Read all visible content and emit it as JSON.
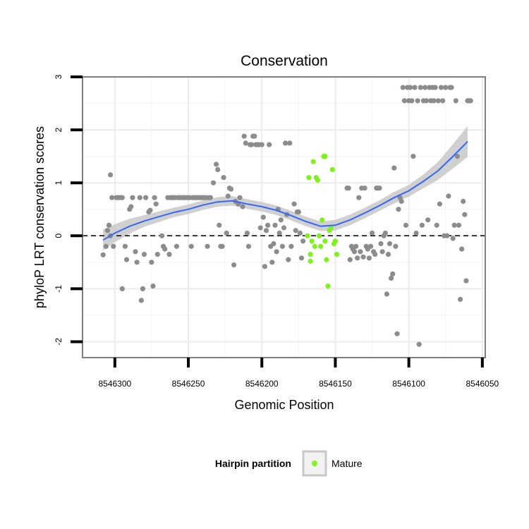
{
  "chart_data": {
    "type": "scatter",
    "title": "Conservation",
    "xlabel": "Genomic Position",
    "ylabel": "phyloP LRT conservation scores",
    "x_reversed": true,
    "xlim": [
      8546322,
      8546048
    ],
    "ylim": [
      -2.3,
      3
    ],
    "xticks": [
      8546300,
      8546250,
      8546200,
      8546150,
      8546100,
      8546050
    ],
    "yticks": [
      -2,
      -1,
      0,
      1,
      2,
      3
    ],
    "grid": true,
    "reference_line": {
      "y": 0,
      "style": "dashed"
    },
    "colors": {
      "other": "#8c8c8c",
      "mature": "#7ff21b",
      "smooth": "#3366ff",
      "band": "#c8c8c8"
    },
    "legend": {
      "title": "Hairpin partition",
      "position": "bottom",
      "items": [
        {
          "label": "Mature",
          "color": "#7ff21b"
        }
      ]
    },
    "series": [
      {
        "name": "",
        "color": "#8c8c8c",
        "points": [
          [
            8546308,
            -0.36
          ],
          [
            8546306,
            -0.2
          ],
          [
            8546305,
            0.1
          ],
          [
            8546304,
            0.2
          ],
          [
            8546303,
            0.0
          ],
          [
            8546303,
            1.15
          ],
          [
            8546302,
            0.72
          ],
          [
            8546301,
            -0.2
          ],
          [
            8546299,
            0.72
          ],
          [
            8546298,
            0.72
          ],
          [
            8546297,
            0.72
          ],
          [
            8546296,
            0.72
          ],
          [
            8546295,
            0.72
          ],
          [
            8546295,
            -1.0
          ],
          [
            8546293,
            -0.2
          ],
          [
            8546292,
            -0.45
          ],
          [
            8546290,
            0.5
          ],
          [
            8546289,
            0.55
          ],
          [
            8546288,
            0.72
          ],
          [
            8546286,
            -0.3
          ],
          [
            8546285,
            -0.5
          ],
          [
            8546283,
            0.72
          ],
          [
            8546282,
            -1.22
          ],
          [
            8546281,
            -1.0
          ],
          [
            8546280,
            -0.35
          ],
          [
            8546279,
            0.72
          ],
          [
            8546277,
            0.45
          ],
          [
            8546276,
            0.48
          ],
          [
            8546275,
            -0.5
          ],
          [
            8546274,
            -0.95
          ],
          [
            8546273,
            0.72
          ],
          [
            8546272,
            0.6
          ],
          [
            8546271,
            -0.35
          ],
          [
            8546268,
            0.0
          ],
          [
            8546267,
            -0.2
          ],
          [
            8546266,
            -0.25
          ],
          [
            8546264,
            0.72
          ],
          [
            8546263,
            -0.35
          ],
          [
            8546262,
            0.72
          ],
          [
            8546261,
            0.72
          ],
          [
            8546260,
            0.72
          ],
          [
            8546259,
            0.72
          ],
          [
            8546258,
            -0.2
          ],
          [
            8546257,
            0.72
          ],
          [
            8546256,
            0.72
          ],
          [
            8546255,
            0.72
          ],
          [
            8546254,
            0.72
          ],
          [
            8546253,
            0.72
          ],
          [
            8546252,
            0.72
          ],
          [
            8546251,
            0.72
          ],
          [
            8546250,
            0.72
          ],
          [
            8546249,
            0.72
          ],
          [
            8546248,
            -0.2
          ],
          [
            8546247,
            0.72
          ],
          [
            8546246,
            0.72
          ],
          [
            8546245,
            0.72
          ],
          [
            8546244,
            0.72
          ],
          [
            8546243,
            0.72
          ],
          [
            8546242,
            0.72
          ],
          [
            8546241,
            0.72
          ],
          [
            8546240,
            0.72
          ],
          [
            8546239,
            0.72
          ],
          [
            8546238,
            0.72
          ],
          [
            8546237,
            -0.2
          ],
          [
            8546236,
            0.72
          ],
          [
            8546235,
            0.72
          ],
          [
            8546233,
            1.0
          ],
          [
            8546231,
            1.35
          ],
          [
            8546230,
            1.25
          ],
          [
            8546229,
            0.2
          ],
          [
            8546228,
            -0.2
          ],
          [
            8546227,
            -0.2
          ],
          [
            8546226,
            1.1
          ],
          [
            8546224,
            0.05
          ],
          [
            8546223,
            0.75
          ],
          [
            8546222,
            0.9
          ],
          [
            8546221,
            0.88
          ],
          [
            8546219,
            -0.55
          ],
          [
            8546218,
            0.65
          ],
          [
            8546216,
            0.6
          ],
          [
            8546215,
            0.72
          ],
          [
            8546213,
            0.55
          ],
          [
            8546212,
            1.88
          ],
          [
            8546211,
            1.75
          ],
          [
            8546210,
            0.05
          ],
          [
            8546209,
            -0.2
          ],
          [
            8546208,
            1.72
          ],
          [
            8546207,
            1.72
          ],
          [
            8546206,
            1.88
          ],
          [
            8546205,
            1.88
          ],
          [
            8546204,
            1.72
          ],
          [
            8546203,
            1.72
          ],
          [
            8546202,
            1.72
          ],
          [
            8546201,
            0.15
          ],
          [
            8546200,
            1.72
          ],
          [
            8546199,
            0.35
          ],
          [
            8546198,
            -0.58
          ],
          [
            8546197,
            0.1
          ],
          [
            8546196,
            0.2
          ],
          [
            8546195,
            1.72
          ],
          [
            8546194,
            -0.2
          ],
          [
            8546193,
            -0.5
          ],
          [
            8546192,
            -0.15
          ],
          [
            8546191,
            0.2
          ],
          [
            8546190,
            -0.3
          ],
          [
            8546189,
            0.5
          ],
          [
            8546188,
            0.05
          ],
          [
            8546187,
            0.3
          ],
          [
            8546186,
            -0.2
          ],
          [
            8546185,
            0.15
          ],
          [
            8546184,
            1.75
          ],
          [
            8546183,
            0.4
          ],
          [
            8546182,
            -0.45
          ],
          [
            8546181,
            1.75
          ],
          [
            8546180,
            -0.2
          ],
          [
            8546178,
            0.6
          ],
          [
            8546177,
            0.1
          ],
          [
            8546176,
            0.45
          ],
          [
            8546175,
            0.45
          ],
          [
            8546174,
            0.05
          ],
          [
            8546173,
            -0.42
          ],
          [
            8546172,
            -0.1
          ],
          [
            8546142,
            0.9
          ],
          [
            8546141,
            0.9
          ],
          [
            8546140,
            -0.45
          ],
          [
            8546139,
            -0.2
          ],
          [
            8546138,
            -0.25
          ],
          [
            8546137,
            -0.3
          ],
          [
            8546136,
            -0.2
          ],
          [
            8546135,
            -0.42
          ],
          [
            8546134,
            0.72
          ],
          [
            8546133,
            -0.3
          ],
          [
            8546132,
            0.9
          ],
          [
            8546131,
            -0.4
          ],
          [
            8546130,
            0.9
          ],
          [
            8546129,
            -0.2
          ],
          [
            8546128,
            -0.25
          ],
          [
            8546127,
            -0.42
          ],
          [
            8546126,
            -0.2
          ],
          [
            8546125,
            0.05
          ],
          [
            8546124,
            -0.3
          ],
          [
            8546123,
            -0.35
          ],
          [
            8546122,
            0.9
          ],
          [
            8546121,
            0.9
          ],
          [
            8546120,
            0.9
          ],
          [
            8546119,
            -0.15
          ],
          [
            8546118,
            -0.3
          ],
          [
            8546117,
            0.0
          ],
          [
            8546116,
            0.05
          ],
          [
            8546115,
            -1.1
          ],
          [
            8546114,
            -0.35
          ],
          [
            8546113,
            -0.15
          ],
          [
            8546112,
            -0.8
          ],
          [
            8546111,
            -0.72
          ],
          [
            8546110,
            1.28
          ],
          [
            8546109,
            -0.2
          ],
          [
            8546108,
            -1.85
          ],
          [
            8546107,
            0.5
          ],
          [
            8546106,
            0.72
          ],
          [
            8546105,
            0.65
          ],
          [
            8546104,
            2.8
          ],
          [
            8546103,
            2.55
          ],
          [
            8546102,
            0.2
          ],
          [
            8546101,
            2.8
          ],
          [
            8546100,
            2.55
          ],
          [
            8546099,
            2.8
          ],
          [
            8546098,
            2.55
          ],
          [
            8546097,
            1.5
          ],
          [
            8546096,
            2.8
          ],
          [
            8546095,
            0.05
          ],
          [
            8546094,
            2.55
          ],
          [
            8546093,
            -2.05
          ],
          [
            8546092,
            2.8
          ],
          [
            8546091,
            0.2
          ],
          [
            8546090,
            2.55
          ],
          [
            8546089,
            2.8
          ],
          [
            8546088,
            2.55
          ],
          [
            8546087,
            0.3
          ],
          [
            8546086,
            2.8
          ],
          [
            8546085,
            2.55
          ],
          [
            8546084,
            2.8
          ],
          [
            8546083,
            2.55
          ],
          [
            8546082,
            2.8
          ],
          [
            8546081,
            0.2
          ],
          [
            8546080,
            2.55
          ],
          [
            8546079,
            0.6
          ],
          [
            8546078,
            2.8
          ],
          [
            8546077,
            2.55
          ],
          [
            8546076,
            0.0
          ],
          [
            8546075,
            2.8
          ],
          [
            8546074,
            0.0
          ],
          [
            8546073,
            0.75
          ],
          [
            8546072,
            2.8
          ],
          [
            8546071,
            2.8
          ],
          [
            8546070,
            -0.05
          ],
          [
            8546069,
            0.2
          ],
          [
            8546068,
            2.55
          ],
          [
            8546067,
            1.5
          ],
          [
            8546066,
            0.2
          ],
          [
            8546065,
            -1.2
          ],
          [
            8546064,
            -0.25
          ],
          [
            8546063,
            0.65
          ],
          [
            8546062,
            0.4
          ],
          [
            8546061,
            -0.85
          ],
          [
            8546060,
            2.55
          ],
          [
            8546059,
            2.55
          ],
          [
            8546058,
            2.55
          ]
        ]
      },
      {
        "name": "Mature",
        "color": "#7ff21b",
        "points": [
          [
            8546169,
            0.0
          ],
          [
            8546168,
            1.1
          ],
          [
            8546167,
            -0.35
          ],
          [
            8546167,
            -0.48
          ],
          [
            8546166,
            -0.1
          ],
          [
            8546165,
            1.4
          ],
          [
            8546164,
            -0.2
          ],
          [
            8546163,
            1.1
          ],
          [
            8546162,
            1.05
          ],
          [
            8546161,
            0.0
          ],
          [
            8546160,
            -0.2
          ],
          [
            8546159,
            0.3
          ],
          [
            8546158,
            1.5
          ],
          [
            8546157,
            1.5
          ],
          [
            8546157,
            -0.1
          ],
          [
            8546156,
            -0.45
          ],
          [
            8546155,
            -0.95
          ],
          [
            8546154,
            0.1
          ],
          [
            8546153,
            0.15
          ],
          [
            8546152,
            1.25
          ],
          [
            8546151,
            -0.15
          ],
          [
            8546150,
            -0.1
          ],
          [
            8546149,
            -0.35
          ]
        ]
      }
    ],
    "smooth": {
      "x": [
        8546308,
        8546300,
        8546290,
        8546280,
        8546270,
        8546260,
        8546250,
        8546240,
        8546230,
        8546220,
        8546215,
        8546210,
        8546200,
        8546190,
        8546180,
        8546170,
        8546160,
        8546150,
        8546140,
        8546130,
        8546120,
        8546110,
        8546100,
        8546090,
        8546080,
        8546070,
        8546060
      ],
      "y": [
        -0.08,
        0.05,
        0.18,
        0.28,
        0.36,
        0.44,
        0.5,
        0.58,
        0.64,
        0.66,
        0.63,
        0.6,
        0.55,
        0.48,
        0.38,
        0.27,
        0.18,
        0.2,
        0.3,
        0.43,
        0.57,
        0.72,
        0.85,
        1.03,
        1.23,
        1.5,
        1.78
      ],
      "se": [
        0.2,
        0.17,
        0.14,
        0.11,
        0.1,
        0.09,
        0.09,
        0.09,
        0.09,
        0.09,
        0.09,
        0.09,
        0.09,
        0.09,
        0.09,
        0.09,
        0.09,
        0.1,
        0.1,
        0.1,
        0.1,
        0.11,
        0.11,
        0.13,
        0.17,
        0.23,
        0.29
      ]
    }
  }
}
